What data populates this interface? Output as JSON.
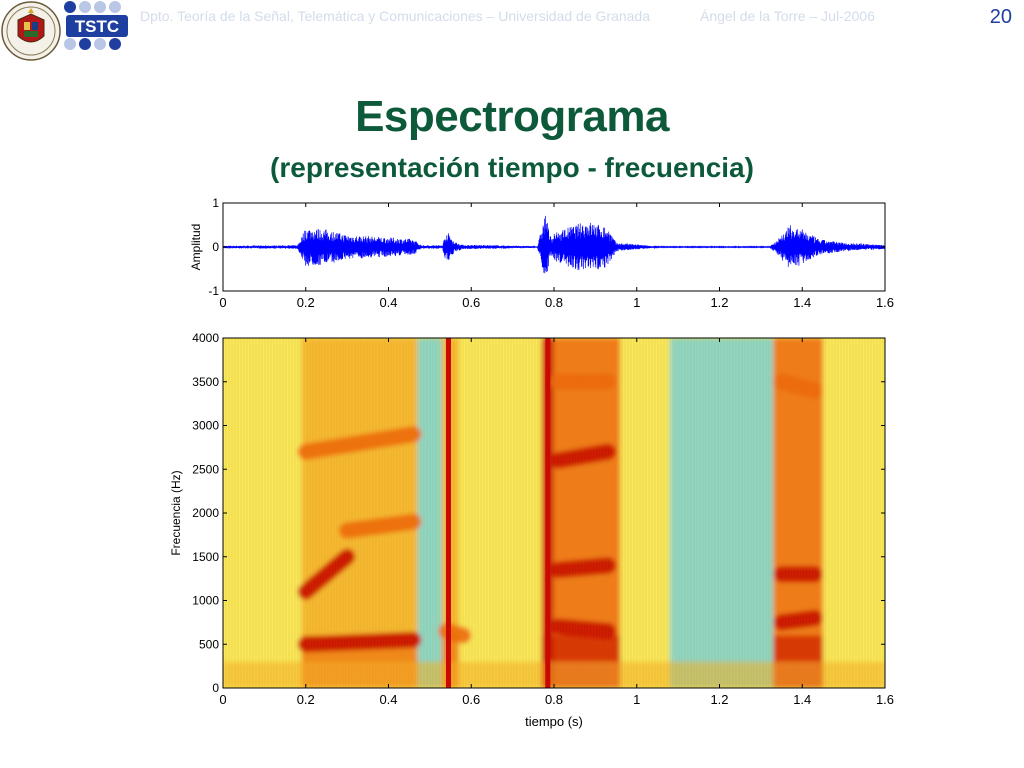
{
  "header": {
    "department": "Dpto. Teoría de la Señal, Telemática y Comunicaciones – Universidad de Granada",
    "author_date": "Ángel de la Torre – Jul-2006",
    "slide_number": "20",
    "logo_tstc_text": "TSTC"
  },
  "slide": {
    "title": "Espectrograma",
    "subtitle": "(representación tiempo - frecuencia)"
  },
  "colors": {
    "title": "#0d5a3a",
    "waveform": "#0000ff",
    "spectro_low": "#79d3d6",
    "spectro_mid": "#f8e85a",
    "spectro_high": "#c90a00"
  },
  "chart_data": [
    {
      "type": "line",
      "ylabel": "Amplitud",
      "xlabel": "",
      "xlim": [
        0,
        1.6
      ],
      "ylim": [
        -1,
        1
      ],
      "x_ticks": [
        "0",
        "0.2",
        "0.4",
        "0.6",
        "0.8",
        "1",
        "1.2",
        "1.4",
        "1.6"
      ],
      "y_ticks": [
        "-1",
        "0",
        "1"
      ],
      "envelope": [
        {
          "t": 0.0,
          "a": 0.03
        },
        {
          "t": 0.18,
          "a": 0.04
        },
        {
          "t": 0.2,
          "a": 0.45
        },
        {
          "t": 0.25,
          "a": 0.4
        },
        {
          "t": 0.3,
          "a": 0.28
        },
        {
          "t": 0.4,
          "a": 0.22
        },
        {
          "t": 0.46,
          "a": 0.18
        },
        {
          "t": 0.48,
          "a": 0.04
        },
        {
          "t": 0.53,
          "a": 0.04
        },
        {
          "t": 0.54,
          "a": 0.38
        },
        {
          "t": 0.56,
          "a": 0.12
        },
        {
          "t": 0.58,
          "a": 0.05
        },
        {
          "t": 0.66,
          "a": 0.04
        },
        {
          "t": 0.76,
          "a": 0.02
        },
        {
          "t": 0.78,
          "a": 0.82
        },
        {
          "t": 0.79,
          "a": 0.25
        },
        {
          "t": 0.82,
          "a": 0.4
        },
        {
          "t": 0.88,
          "a": 0.6
        },
        {
          "t": 0.93,
          "a": 0.45
        },
        {
          "t": 0.95,
          "a": 0.1
        },
        {
          "t": 1.0,
          "a": 0.06
        },
        {
          "t": 1.05,
          "a": 0.01
        },
        {
          "t": 1.32,
          "a": 0.01
        },
        {
          "t": 1.34,
          "a": 0.18
        },
        {
          "t": 1.37,
          "a": 0.5
        },
        {
          "t": 1.4,
          "a": 0.4
        },
        {
          "t": 1.44,
          "a": 0.18
        },
        {
          "t": 1.5,
          "a": 0.1
        },
        {
          "t": 1.6,
          "a": 0.05
        }
      ]
    },
    {
      "type": "heatmap",
      "xlabel": "tiempo (s)",
      "ylabel": "Frecuencia (Hz)",
      "xlim": [
        0,
        1.6
      ],
      "ylim": [
        0,
        4000
      ],
      "x_ticks": [
        "0",
        "0.2",
        "0.4",
        "0.6",
        "0.8",
        "1",
        "1.2",
        "1.4",
        "1.6"
      ],
      "y_ticks": [
        "0",
        "500",
        "1000",
        "1500",
        "2000",
        "2500",
        "3000",
        "3500",
        "4000"
      ],
      "segments": [
        {
          "t0": 0.0,
          "t1": 0.19,
          "level": 0.35
        },
        {
          "t0": 0.19,
          "t1": 0.47,
          "level": 0.7
        },
        {
          "t0": 0.47,
          "t1": 0.53,
          "level": 0.25
        },
        {
          "t0": 0.53,
          "t1": 0.57,
          "level": 0.65
        },
        {
          "t0": 0.57,
          "t1": 0.77,
          "level": 0.35
        },
        {
          "t0": 0.77,
          "t1": 0.8,
          "level": 0.95
        },
        {
          "t0": 0.8,
          "t1": 0.96,
          "level": 0.8
        },
        {
          "t0": 0.96,
          "t1": 1.08,
          "level": 0.4
        },
        {
          "t0": 1.08,
          "t1": 1.33,
          "level": 0.2
        },
        {
          "t0": 1.33,
          "t1": 1.45,
          "level": 0.75
        },
        {
          "t0": 1.45,
          "t1": 1.6,
          "level": 0.4
        }
      ],
      "formants": [
        {
          "t0": 0.2,
          "t1": 0.46,
          "f_start": 500,
          "f_end": 550,
          "level": 0.95
        },
        {
          "t0": 0.2,
          "t1": 0.3,
          "f_start": 1100,
          "f_end": 1500,
          "level": 0.85
        },
        {
          "t0": 0.3,
          "t1": 0.46,
          "f_start": 1800,
          "f_end": 1900,
          "level": 0.8
        },
        {
          "t0": 0.2,
          "t1": 0.46,
          "f_start": 2700,
          "f_end": 2900,
          "level": 0.75
        },
        {
          "t0": 0.54,
          "t1": 0.58,
          "f_start": 650,
          "f_end": 600,
          "level": 0.8
        },
        {
          "t0": 0.81,
          "t1": 0.93,
          "f_start": 700,
          "f_end": 650,
          "level": 0.98
        },
        {
          "t0": 0.81,
          "t1": 0.93,
          "f_start": 1350,
          "f_end": 1400,
          "level": 0.95
        },
        {
          "t0": 0.81,
          "t1": 0.93,
          "f_start": 2600,
          "f_end": 2700,
          "level": 0.85
        },
        {
          "t0": 0.81,
          "t1": 0.93,
          "f_start": 3500,
          "f_end": 3500,
          "level": 0.8
        },
        {
          "t0": 1.35,
          "t1": 1.43,
          "f_start": 750,
          "f_end": 800,
          "level": 0.98
        },
        {
          "t0": 1.35,
          "t1": 1.43,
          "f_start": 1300,
          "f_end": 1300,
          "level": 0.85
        },
        {
          "t0": 1.35,
          "t1": 1.43,
          "f_start": 3500,
          "f_end": 3400,
          "level": 0.8
        }
      ],
      "vertical_lines": [
        {
          "t": 0.545,
          "level": 0.85
        },
        {
          "t": 0.785,
          "level": 1.0
        }
      ]
    }
  ]
}
